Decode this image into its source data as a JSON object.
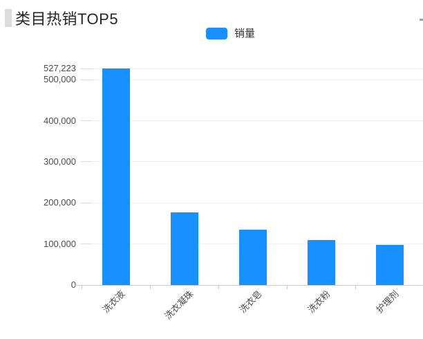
{
  "page": {
    "title": "类目热销TOP5"
  },
  "legend": {
    "items": [
      {
        "label": "销量",
        "color": "#1890ff"
      }
    ]
  },
  "chart_data": {
    "type": "bar",
    "title": "类目热销TOP5",
    "categories": [
      "洗衣液",
      "洗衣凝珠",
      "洗衣皂",
      "洗衣粉",
      "护理剂"
    ],
    "series": [
      {
        "name": "销量",
        "color": "#1890ff",
        "values": [
          527223,
          177000,
          134000,
          110000,
          97000
        ]
      }
    ],
    "y_axis": {
      "max": 527223,
      "ticks": [
        {
          "value": 0,
          "label": "0"
        },
        {
          "value": 100000,
          "label": "100,000"
        },
        {
          "value": 200000,
          "label": "200,000"
        },
        {
          "value": 300000,
          "label": "300,000"
        },
        {
          "value": 400000,
          "label": "400,000"
        },
        {
          "value": 500000,
          "label": "500,000"
        },
        {
          "value": 527223,
          "label": "527,223"
        }
      ]
    },
    "x_axis": {
      "label_rotation_deg": 45
    },
    "grid": true,
    "legend_position": "top-center",
    "xlabel": "",
    "ylabel": ""
  }
}
